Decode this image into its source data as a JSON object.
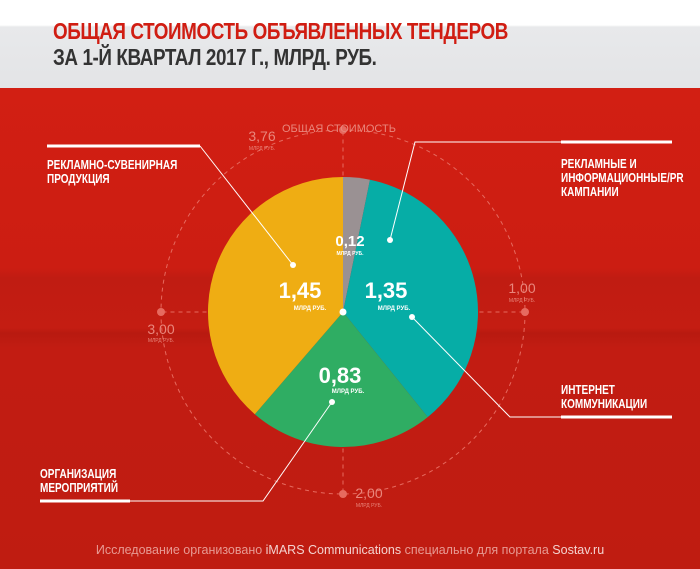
{
  "title": {
    "line1": "ОБЩАЯ СТОИМОСТЬ ОБЪЯВЛЕННЫХ ТЕНДЕРОВ",
    "line2": "ЗА 1-Й КВАРТАЛ 2017 Г., МЛРД. РУБ."
  },
  "chart_data": {
    "type": "pie",
    "unit": "МЛРД РУБ.",
    "total": {
      "value": "3,76",
      "unit": "МЛРД РУБ.",
      "label": "ОБЩАЯ СТОИМОСТЬ"
    },
    "slices": [
      {
        "name": "РЕКЛАМНЫЕ И ИНФОРМАЦИОННЫЕ/PR КАМПАНИИ",
        "value": 0.12,
        "label": "0,12",
        "color": "#9a9193"
      },
      {
        "name": "ИНТЕРНЕТ КОММУНИКАЦИИ",
        "value": 1.35,
        "label": "1,35",
        "color": "#06ada6"
      },
      {
        "name": "ОРГАНИЗАЦИЯ МЕРОПРИЯТИЙ",
        "value": 0.83,
        "label": "0,83",
        "color": "#2fad63"
      },
      {
        "name": "РЕКЛАМНО-СУВЕНИРНАЯ ПРОДУКЦИЯ",
        "value": 1.45,
        "label": "1,45",
        "color": "#efad13"
      }
    ],
    "scale_ticks": [
      {
        "value": "1,00",
        "unit": "МЛРД РУБ."
      },
      {
        "value": "2,00",
        "unit": "МЛРД РУБ."
      },
      {
        "value": "3,00",
        "unit": "МЛРД РУБ."
      }
    ]
  },
  "footer": {
    "pre": "Исследование организовано ",
    "brand": "iMARS Communications",
    "mid": " специально для портала ",
    "site": "Sostav.ru"
  }
}
